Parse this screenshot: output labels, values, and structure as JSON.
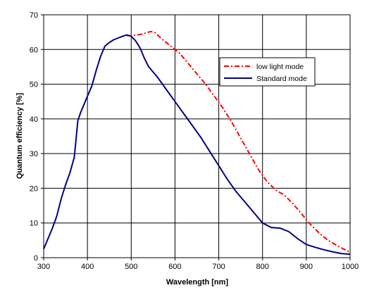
{
  "chart_data": {
    "type": "line",
    "title": "",
    "xlabel": "Wavelength [nm]",
    "ylabel": "Quantum efficiency [%]",
    "xlim": [
      300,
      1000
    ],
    "ylim": [
      0,
      70
    ],
    "xticks": [
      300,
      400,
      500,
      600,
      700,
      800,
      900,
      1000
    ],
    "yticks": [
      0,
      10,
      20,
      30,
      40,
      50,
      60,
      70
    ],
    "grid": true,
    "legend_position": "right",
    "series": [
      {
        "name": "low light mode",
        "color": "#ff0000",
        "style": "dash-dot",
        "points": [
          [
            490,
            64
          ],
          [
            500,
            64
          ],
          [
            520,
            64.3
          ],
          [
            535,
            64.8
          ],
          [
            545,
            65.2
          ],
          [
            555,
            64.8
          ],
          [
            570,
            63
          ],
          [
            590,
            61
          ],
          [
            610,
            59
          ],
          [
            630,
            56
          ],
          [
            650,
            53
          ],
          [
            670,
            50
          ],
          [
            690,
            46.5
          ],
          [
            710,
            43
          ],
          [
            730,
            39
          ],
          [
            750,
            34.5
          ],
          [
            770,
            30
          ],
          [
            790,
            25.5
          ],
          [
            810,
            22
          ],
          [
            830,
            19.5
          ],
          [
            850,
            18
          ],
          [
            870,
            15.5
          ],
          [
            890,
            12.5
          ],
          [
            910,
            9.5
          ],
          [
            930,
            7
          ],
          [
            950,
            5
          ],
          [
            970,
            3.5
          ],
          [
            990,
            2.2
          ],
          [
            1000,
            1.5
          ]
        ]
      },
      {
        "name": "Standard mode",
        "color": "#000080",
        "style": "solid",
        "points": [
          [
            300,
            2.5
          ],
          [
            310,
            5.5
          ],
          [
            320,
            8.5
          ],
          [
            330,
            12
          ],
          [
            340,
            17
          ],
          [
            350,
            21
          ],
          [
            360,
            24.5
          ],
          [
            370,
            29
          ],
          [
            378,
            39.5
          ],
          [
            385,
            42
          ],
          [
            395,
            45
          ],
          [
            400,
            46.5
          ],
          [
            410,
            49.5
          ],
          [
            420,
            54
          ],
          [
            430,
            58
          ],
          [
            440,
            61
          ],
          [
            450,
            62
          ],
          [
            460,
            62.8
          ],
          [
            470,
            63.3
          ],
          [
            480,
            63.8
          ],
          [
            490,
            64.2
          ],
          [
            500,
            63.8
          ],
          [
            510,
            62.5
          ],
          [
            520,
            60.5
          ],
          [
            530,
            57.5
          ],
          [
            540,
            55
          ],
          [
            560,
            52
          ],
          [
            580,
            48.5
          ],
          [
            600,
            45
          ],
          [
            620,
            41.5
          ],
          [
            640,
            38
          ],
          [
            660,
            34.5
          ],
          [
            680,
            30.5
          ],
          [
            700,
            26.5
          ],
          [
            720,
            22.5
          ],
          [
            740,
            19
          ],
          [
            760,
            16
          ],
          [
            780,
            13
          ],
          [
            800,
            10
          ],
          [
            820,
            8.7
          ],
          [
            840,
            8.5
          ],
          [
            860,
            7.5
          ],
          [
            880,
            5.5
          ],
          [
            900,
            3.8
          ],
          [
            920,
            3
          ],
          [
            940,
            2.3
          ],
          [
            960,
            1.7
          ],
          [
            980,
            1.2
          ],
          [
            1000,
            1
          ]
        ]
      }
    ]
  }
}
